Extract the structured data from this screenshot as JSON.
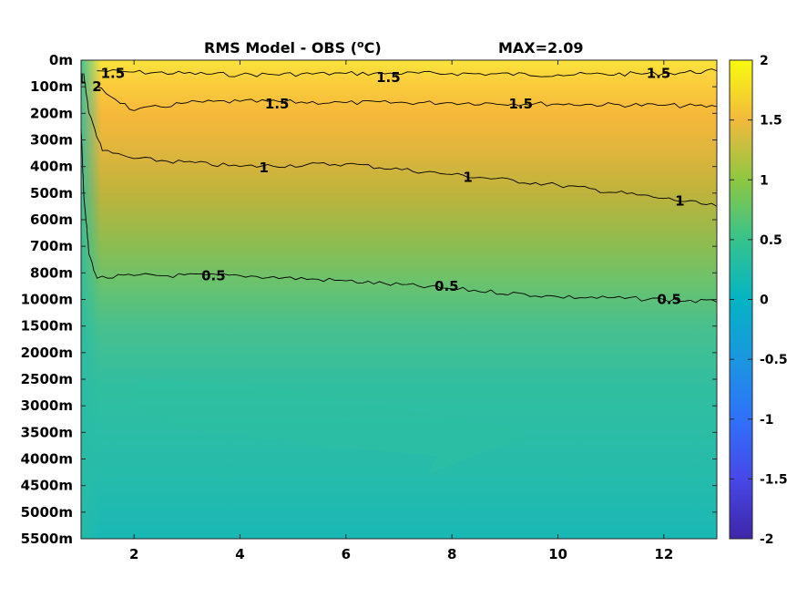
{
  "chart_data": {
    "type": "heatmap",
    "title_main": "RMS Model - OBS (",
    "title_unit_sup": "o",
    "title_unit_end": "C)",
    "title_max": "MAX=2.09",
    "x_ticks": [
      2,
      4,
      6,
      8,
      10,
      12
    ],
    "x_range": [
      1,
      13
    ],
    "y_ticks": [
      "0m",
      "100m",
      "200m",
      "300m",
      "400m",
      "500m",
      "600m",
      "700m",
      "800m",
      "1000m",
      "1500m",
      "2000m",
      "2500m",
      "3000m",
      "3500m",
      "4000m",
      "4500m",
      "5000m",
      "5500m"
    ],
    "colorbar": {
      "min": -2,
      "max": 2,
      "ticks": [
        "2",
        "1.5",
        "1",
        "0.5",
        "0",
        "-0.5",
        "-1",
        "-1.5",
        "-2"
      ],
      "colormap": "parula"
    },
    "contours": [
      {
        "level": 1.5,
        "label": "1.5",
        "points": [
          [
            1.3,
            0.4
          ],
          [
            2,
            0.45
          ],
          [
            4,
            0.55
          ],
          [
            6,
            0.5
          ],
          [
            8,
            0.5
          ],
          [
            10,
            0.55
          ],
          [
            12,
            0.5
          ],
          [
            13,
            0.4
          ]
        ]
      },
      {
        "level": 1.5,
        "label": "1.5",
        "points": [
          [
            1.3,
            1.0
          ],
          [
            2,
            1.9
          ],
          [
            3,
            1.6
          ],
          [
            4,
            1.55
          ],
          [
            6,
            1.6
          ],
          [
            8,
            1.6
          ],
          [
            10,
            1.65
          ],
          [
            12,
            1.7
          ],
          [
            13,
            1.75
          ]
        ]
      },
      {
        "level": 1,
        "label": "1",
        "points": [
          [
            1.05,
            0.5
          ],
          [
            1.15,
            2
          ],
          [
            1.4,
            3.4
          ],
          [
            2,
            3.7
          ],
          [
            4,
            4.0
          ],
          [
            6,
            3.9
          ],
          [
            8,
            4.3
          ],
          [
            10,
            4.7
          ],
          [
            12,
            5.2
          ],
          [
            13,
            5.5
          ]
        ]
      },
      {
        "level": 0.5,
        "label": "0.5",
        "points": [
          [
            1,
            2.5
          ],
          [
            1.05,
            5
          ],
          [
            1.15,
            7.3
          ],
          [
            1.3,
            8.2
          ],
          [
            2,
            8.1
          ],
          [
            4,
            8.1
          ],
          [
            6,
            8.3
          ],
          [
            8,
            8.6
          ],
          [
            10,
            8.9
          ],
          [
            12,
            9.0
          ],
          [
            13,
            9.1
          ]
        ]
      }
    ],
    "contour_labels": [
      {
        "text": "1.5",
        "x": 1.6,
        "y": 0.5
      },
      {
        "text": "2",
        "x": 1.3,
        "y": 1.0
      },
      {
        "text": "1",
        "x": 1.0,
        "y": 0.7
      },
      {
        "text": "1.5",
        "x": 6.8,
        "y": 0.65
      },
      {
        "text": "1.5",
        "x": 11.9,
        "y": 0.5
      },
      {
        "text": "1.5",
        "x": 4.7,
        "y": 1.65
      },
      {
        "text": "1.5",
        "x": 9.3,
        "y": 1.65
      },
      {
        "text": "1",
        "x": 4.45,
        "y": 4.05
      },
      {
        "text": "1",
        "x": 8.3,
        "y": 4.4
      },
      {
        "text": "1",
        "x": 12.3,
        "y": 5.3
      },
      {
        "text": "0.5",
        "x": 3.5,
        "y": 8.1
      },
      {
        "text": "0.5",
        "x": 7.9,
        "y": 8.5
      },
      {
        "text": "0.5",
        "x": 12.1,
        "y": 9.0
      }
    ]
  }
}
